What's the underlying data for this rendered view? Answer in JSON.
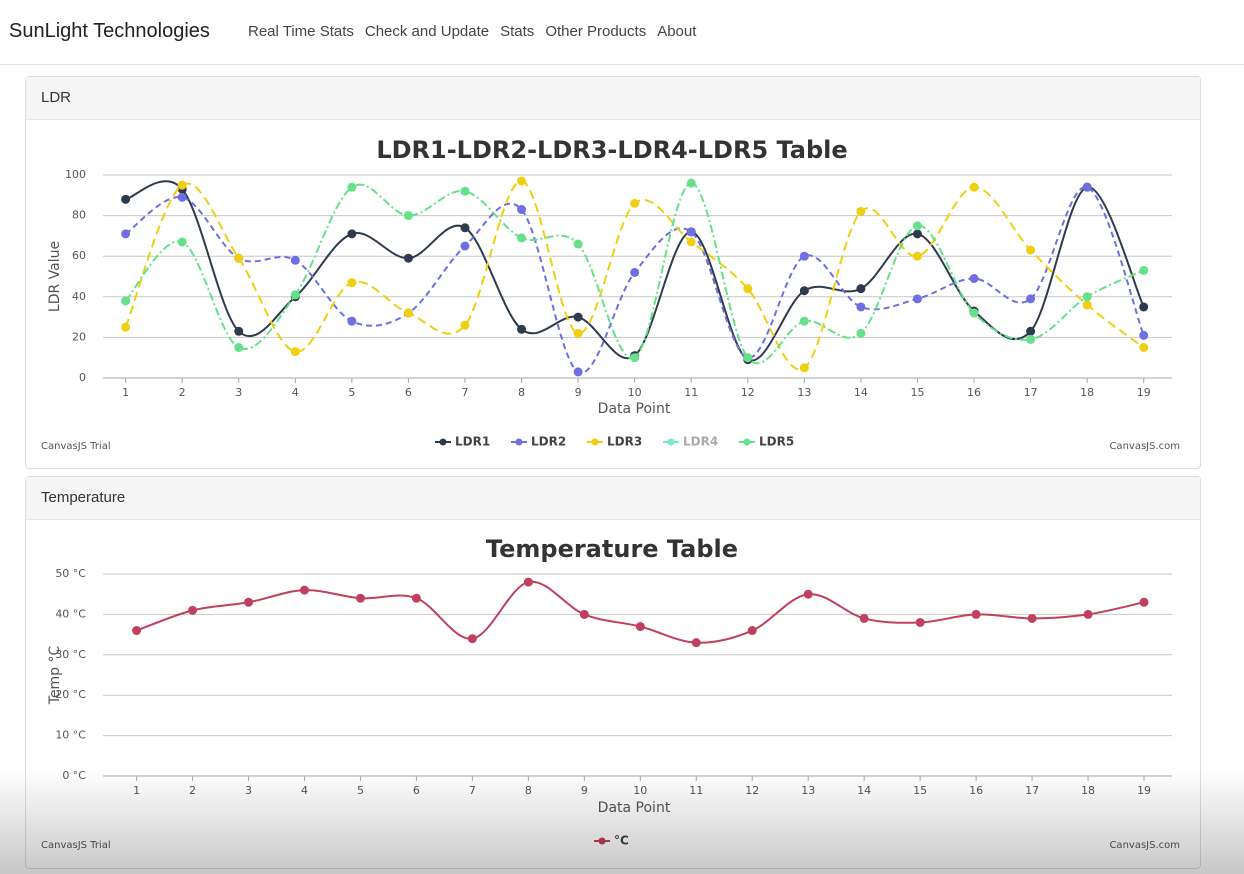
{
  "header": {
    "brand": "SunLight Technologies",
    "nav": [
      "Real Time Stats",
      "Check and Update",
      "Stats",
      "Other Products",
      "About"
    ]
  },
  "panels": [
    "LDR",
    "Temperature"
  ],
  "credits": {
    "left": "CanvasJS Trial",
    "right": "CanvasJS.com"
  },
  "chart_data": [
    {
      "type": "line",
      "title": "LDR1-LDR2-LDR3-LDR4-LDR5 Table",
      "x_label": "Data Point",
      "y_label": "LDR Value",
      "x": [
        1,
        2,
        3,
        4,
        5,
        6,
        7,
        8,
        9,
        10,
        11,
        12,
        13,
        14,
        15,
        16,
        17,
        18,
        19
      ],
      "xlim": [
        0.6,
        19.5
      ],
      "xticks": [
        1,
        2,
        3,
        4,
        5,
        6,
        7,
        8,
        9,
        10,
        11,
        12,
        13,
        14,
        15,
        16,
        17,
        18,
        19
      ],
      "ylim": [
        0,
        100
      ],
      "yticks": [
        0,
        20,
        40,
        60,
        80,
        100
      ],
      "grid": true,
      "legend": "bottom",
      "smooth": true,
      "series": [
        {
          "name": "LDR1",
          "color": "#2e3a4e",
          "dash": "solid",
          "values": [
            88,
            93,
            23,
            40,
            71,
            59,
            74,
            24,
            30,
            11,
            72,
            9,
            43,
            44,
            71,
            33,
            23,
            94,
            35
          ]
        },
        {
          "name": "LDR2",
          "color": "#6f6fe0",
          "dash": "dash",
          "values": [
            71,
            89,
            59,
            58,
            28,
            32,
            65,
            83,
            3,
            52,
            72,
            10,
            60,
            35,
            39,
            49,
            39,
            94,
            21
          ]
        },
        {
          "name": "LDR3",
          "color": "#f0cf10",
          "dash": "longDash",
          "values": [
            25,
            95,
            59,
            13,
            47,
            32,
            26,
            97,
            22,
            86,
            67,
            44,
            5,
            82,
            60,
            94,
            63,
            36,
            15
          ]
        },
        {
          "name": "LDR4",
          "color": "#7de8d0",
          "dash": "dot",
          "visible": false
        },
        {
          "name": "LDR5",
          "color": "#66e08a",
          "dash": "dashDot",
          "values": [
            38,
            67,
            15,
            41,
            94,
            80,
            92,
            69,
            66,
            10,
            96,
            10,
            28,
            22,
            75,
            32,
            19,
            40,
            53
          ]
        }
      ]
    },
    {
      "type": "line",
      "title": "Temperature Table",
      "x_label": "Data Point",
      "y_label": "Temp °C",
      "x": [
        1,
        2,
        3,
        4,
        5,
        6,
        7,
        8,
        9,
        10,
        11,
        12,
        13,
        14,
        15,
        16,
        17,
        18,
        19
      ],
      "xlim": [
        0.4,
        19.5
      ],
      "xticks": [
        1,
        2,
        3,
        4,
        5,
        6,
        7,
        8,
        9,
        10,
        11,
        12,
        13,
        14,
        15,
        16,
        17,
        18,
        19
      ],
      "ylim": [
        0,
        50
      ],
      "yticks": [
        {
          "value": 0,
          "label": "0 °C"
        },
        {
          "value": 10,
          "label": "10 °C"
        },
        {
          "value": 20,
          "label": "20 °C"
        },
        {
          "value": 30,
          "label": "30 °C"
        },
        {
          "value": 40,
          "label": "40 °C"
        },
        {
          "value": 50,
          "label": "50 °C"
        }
      ],
      "grid": true,
      "legend": "bottom",
      "smooth": true,
      "series": [
        {
          "name": "°C",
          "color": "#c0405e",
          "dash": "solid",
          "values": [
            36,
            41,
            43,
            46,
            44,
            44,
            34,
            48,
            40,
            37,
            33,
            36,
            45,
            39,
            38,
            40,
            39,
            40,
            43
          ]
        }
      ]
    }
  ]
}
